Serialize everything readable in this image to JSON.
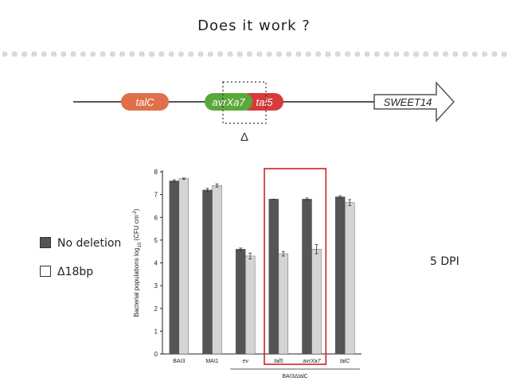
{
  "slide": {
    "title": "Does it work ?",
    "delta_symbol": "Δ",
    "dpi_label": "5 DPI"
  },
  "diagram": {
    "genes": [
      {
        "label": "talC",
        "color": "#e0704a"
      },
      {
        "label": "avrXa7",
        "color": "#5aa83a"
      },
      {
        "label": "tal5",
        "color": "#d93a3a"
      }
    ],
    "target": "SWEET14"
  },
  "legend": [
    {
      "label": "No deletion",
      "color": "#555555"
    },
    {
      "label": "Δ18bp",
      "color": "#ffffff"
    }
  ],
  "chart_data": {
    "type": "bar",
    "ylabel_main": "Bacterial populations log",
    "ylabel_sub": "10",
    "ylabel_tail": " (CFU cm",
    "ylabel_sup": "-2",
    "ylabel_close": ")",
    "ylim": [
      0,
      8
    ],
    "yticks": [
      "0",
      "1",
      "2",
      "3",
      "4",
      "5",
      "6",
      "7",
      "8"
    ],
    "categories": [
      "BAI3",
      "MAI1",
      "ev",
      "tal5",
      "avrXa7",
      "talC"
    ],
    "italic_categories": [
      "ev",
      "tal5",
      "avrXa7",
      "talC"
    ],
    "group_label": "BAI3ΔtalC",
    "series": [
      {
        "name": "No deletion",
        "color": "#555555",
        "values": [
          7.6,
          7.2,
          4.6,
          6.8,
          6.8,
          6.9
        ],
        "errors": [
          0.05,
          0.07,
          0.05,
          0.0,
          0.05,
          0.05
        ]
      },
      {
        "name": "Δ18bp",
        "color": "#d4d4d4",
        "values": [
          7.7,
          7.4,
          4.3,
          4.4,
          4.6,
          6.65
        ],
        "errors": [
          0.03,
          0.07,
          0.13,
          0.1,
          0.2,
          0.13
        ]
      }
    ],
    "highlight": [
      "tal5",
      "avrXa7"
    ],
    "highlight_color": "#d42020"
  }
}
